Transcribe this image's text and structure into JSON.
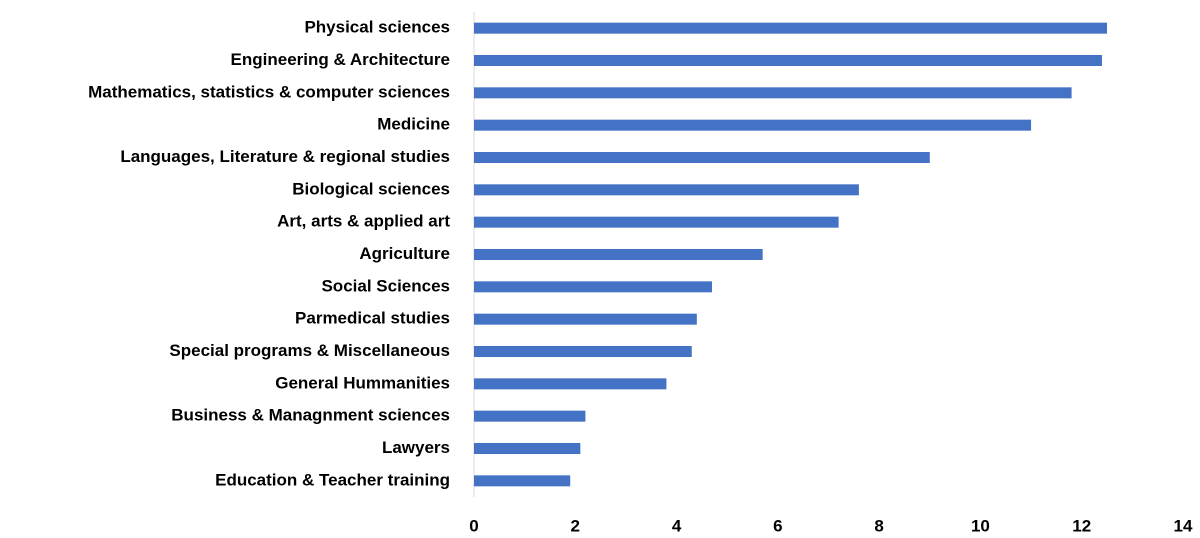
{
  "chart_data": {
    "type": "barh",
    "categories": [
      "Physical sciences",
      "Engineering & Architecture",
      "Mathematics, statistics & computer sciences",
      "Medicine",
      "Languages, Literature & regional studies",
      "Biological sciences",
      "Art, arts & applied art",
      "Agriculture",
      "Social Sciences",
      "Parmedical studies",
      "Special programs & Miscellaneous",
      "General Hummanities",
      "Business & Managnment sciences",
      "Lawyers",
      "Education & Teacher training"
    ],
    "values": [
      12.5,
      12.4,
      11.8,
      11.0,
      9.0,
      7.6,
      7.2,
      5.7,
      4.7,
      4.4,
      4.3,
      3.8,
      2.2,
      2.1,
      1.9
    ],
    "color": "#4472c4",
    "xlim": [
      0,
      14
    ],
    "xticks": [
      0,
      2,
      4,
      6,
      8,
      10,
      12,
      14
    ],
    "grid": false
  }
}
